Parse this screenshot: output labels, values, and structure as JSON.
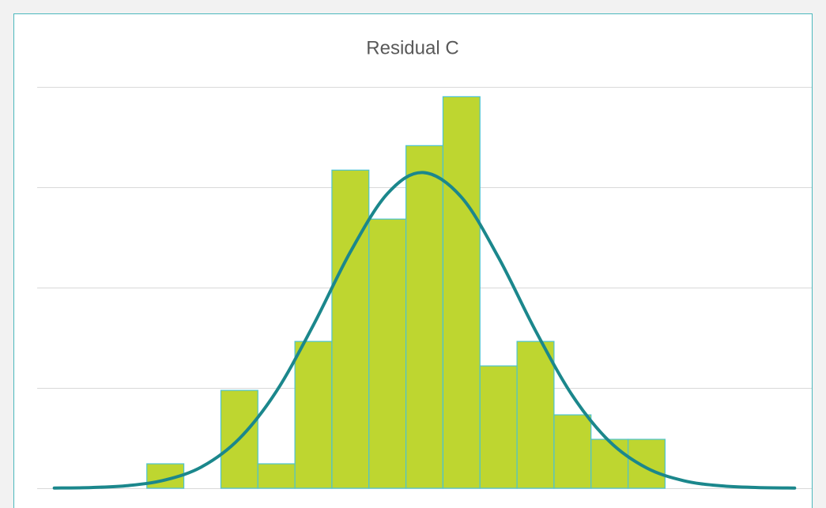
{
  "chart_data": {
    "type": "histogram",
    "title": "Residual C",
    "bins": [
      0,
      1,
      2,
      3,
      4,
      5,
      6,
      7,
      8,
      9,
      10,
      11,
      12,
      13,
      14
    ],
    "counts": [
      1,
      0,
      4,
      1,
      6,
      13,
      11,
      14,
      16,
      5,
      6,
      3,
      2,
      2
    ],
    "color": "#bed630",
    "edge_color": "#4cc3d0",
    "curve": {
      "color": "#1b878c",
      "x": [
        -2.5,
        -1.5,
        -0.5,
        0.5,
        1.5,
        2.5,
        3.5,
        4.5,
        5.5,
        6.5,
        7.46,
        8.5,
        9.5,
        10.5,
        11.5,
        12.5,
        13.5,
        14.5,
        15.5,
        16.5,
        17.5
      ],
      "values": [
        0.01,
        0.03,
        0.11,
        0.34,
        0.89,
        2.03,
        3.96,
        6.67,
        9.66,
        12.04,
        12.9,
        11.89,
        9.43,
        6.44,
        3.78,
        1.91,
        0.83,
        0.31,
        0.1,
        0.03,
        0.01
      ]
    },
    "xlim": [
      -2.6,
      17.6
    ],
    "ylim": [
      0,
      16.4
    ],
    "yticks": [
      0,
      4.1,
      8.2,
      12.3,
      16.4
    ],
    "grid": true
  }
}
